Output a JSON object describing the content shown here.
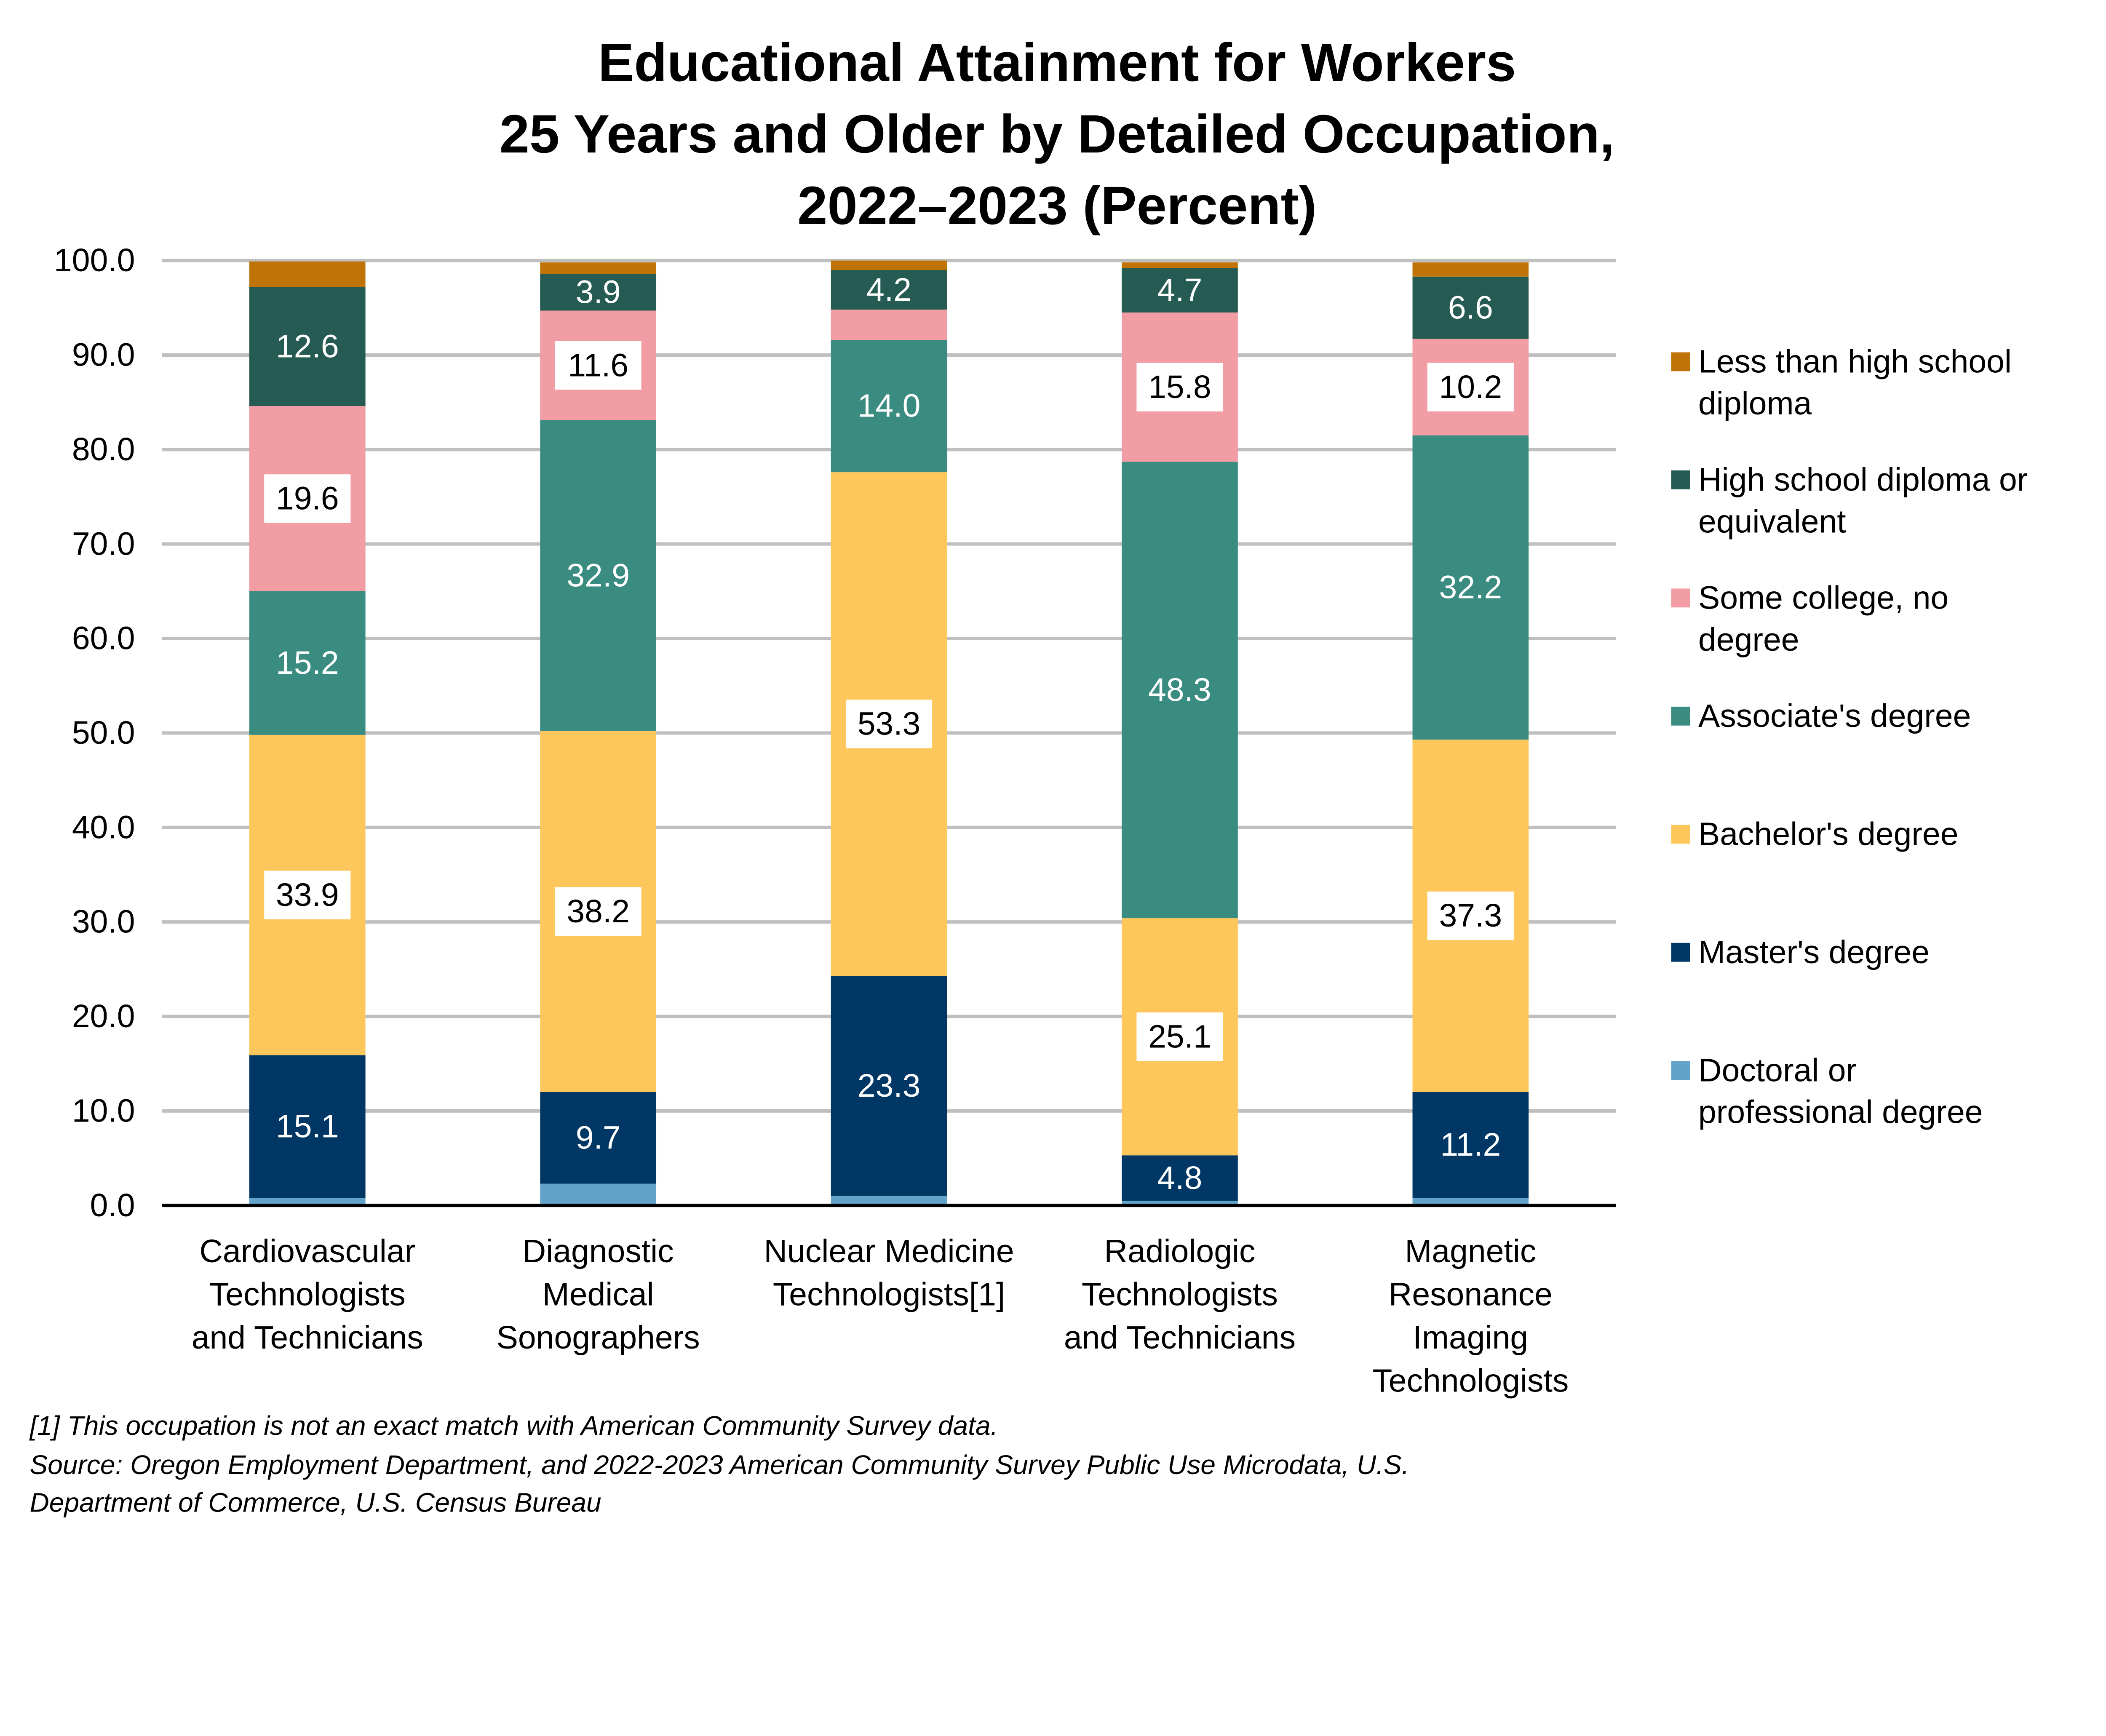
{
  "chart_data": {
    "type": "bar",
    "stacked": true,
    "title": [
      "Educational Attainment for Workers",
      "25 Years and Older by Detailed Occupation,",
      "2022–2023 (Percent)"
    ],
    "xlabel": "",
    "ylabel": "",
    "ylim": [
      0,
      100
    ],
    "yticks": [
      "0.0",
      "10.0",
      "20.0",
      "30.0",
      "40.0",
      "50.0",
      "60.0",
      "70.0",
      "80.0",
      "90.0",
      "100.0"
    ],
    "grid": true,
    "legend_position": "right",
    "categories": [
      [
        "Cardiovascular",
        "Technologists",
        "and Technicians"
      ],
      [
        "Diagnostic",
        "Medical",
        "Sonographers"
      ],
      [
        "Nuclear Medicine",
        "Technologists[1]"
      ],
      [
        "Radiologic",
        "Technologists",
        "and Technicians"
      ],
      [
        "Magnetic",
        "Resonance",
        "Imaging",
        "Technologists"
      ]
    ],
    "series": [
      {
        "name": [
          "Doctoral or",
          "professional degree"
        ],
        "color": "#62A3C9",
        "values": [
          0.8,
          2.3,
          1.0,
          0.5,
          0.8
        ],
        "labels": [
          null,
          null,
          null,
          null,
          null
        ]
      },
      {
        "name": [
          "Master's degree"
        ],
        "color": "#003764",
        "values": [
          15.1,
          9.7,
          23.3,
          4.8,
          11.2
        ],
        "labels": [
          "15.1",
          "9.7",
          "23.3",
          "4.8",
          "11.2"
        ]
      },
      {
        "name": [
          "Bachelor's degree"
        ],
        "color": "#FDC75C",
        "values": [
          33.9,
          38.2,
          53.3,
          25.1,
          37.3
        ],
        "labels": [
          "33.9",
          "38.2",
          "53.3",
          "25.1",
          "37.3"
        ]
      },
      {
        "name": [
          "Associate's degree"
        ],
        "color": "#3A8C80",
        "values": [
          15.2,
          32.9,
          14.0,
          48.3,
          32.2
        ],
        "labels": [
          "15.2",
          "32.9",
          "14.0",
          "48.3",
          "32.2"
        ]
      },
      {
        "name": [
          "Some college, no",
          "degree"
        ],
        "color": "#F29CA3",
        "values": [
          19.6,
          11.6,
          3.2,
          15.8,
          10.2
        ],
        "labels": [
          "19.6",
          "11.6",
          null,
          "15.8",
          "10.2"
        ]
      },
      {
        "name": [
          "High school diploma or",
          "equivalent"
        ],
        "color": "#255B52",
        "values": [
          12.6,
          3.9,
          4.2,
          4.7,
          6.6
        ],
        "labels": [
          "12.6",
          "3.9",
          "4.2",
          "4.7",
          "6.6"
        ]
      },
      {
        "name": [
          "Less than high school",
          "diploma"
        ],
        "color": "#C07408",
        "values": [
          2.7,
          1.2,
          1.0,
          0.6,
          1.5
        ],
        "labels": [
          null,
          null,
          null,
          null,
          null
        ]
      }
    ]
  },
  "footnotes": [
    "[1] This occupation is not an exact match with American Community Survey data.",
    "Source: Oregon Employment Department, and 2022-2023 American Community Survey Public Use Microdata, U.S.",
    "Department of Commerce, U.S. Census Bureau"
  ]
}
